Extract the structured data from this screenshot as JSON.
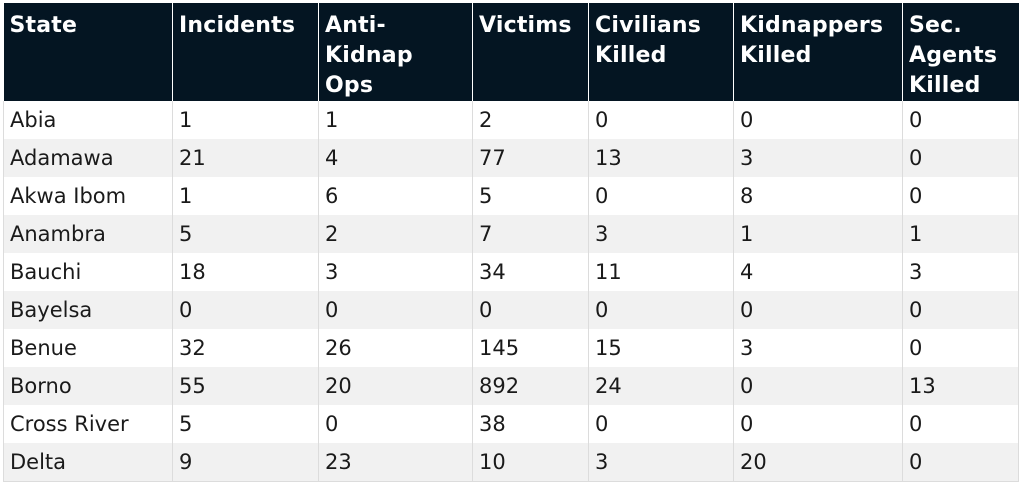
{
  "table": {
    "headers": [
      "State",
      "Incidents",
      "Anti-\nKidnap\nOps",
      "Victims",
      "Civilians\nKilled",
      "Kidnappers\nKilled",
      "Sec.\nAgents\nKilled"
    ],
    "rows": [
      [
        "Abia",
        "1",
        "1",
        "2",
        "0",
        "0",
        "0"
      ],
      [
        "Adamawa",
        "21",
        "4",
        "77",
        "13",
        "3",
        "0"
      ],
      [
        "Akwa Ibom",
        "1",
        "6",
        "5",
        "0",
        "8",
        "0"
      ],
      [
        "Anambra",
        "5",
        "2",
        "7",
        "3",
        "1",
        "1"
      ],
      [
        "Bauchi",
        "18",
        "3",
        "34",
        "11",
        "4",
        "3"
      ],
      [
        "Bayelsa",
        "0",
        "0",
        "0",
        "0",
        "0",
        "0"
      ],
      [
        "Benue",
        "32",
        "26",
        "145",
        "15",
        "3",
        "0"
      ],
      [
        "Borno",
        "55",
        "20",
        "892",
        "24",
        "0",
        "13"
      ],
      [
        "Cross River",
        "5",
        "0",
        "38",
        "0",
        "0",
        "0"
      ],
      [
        "Delta",
        "9",
        "23",
        "10",
        "3",
        "20",
        "0"
      ]
    ],
    "colors": {
      "header_bg": "#041522",
      "header_text": "#ffffff",
      "row_alt_bg": "#f1f1f1",
      "grid_line": "#dcdcdc"
    }
  }
}
